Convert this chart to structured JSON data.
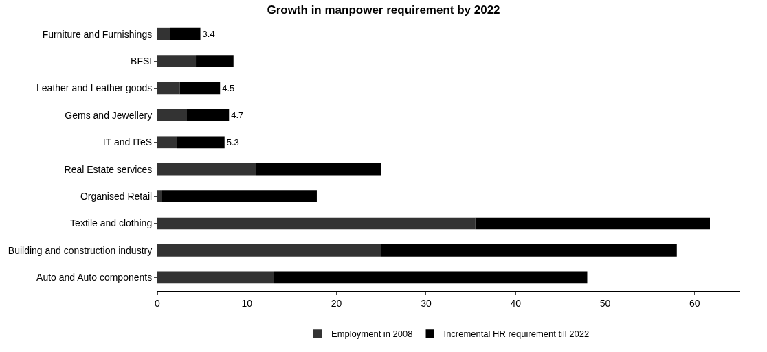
{
  "chart_data": {
    "type": "bar",
    "orientation": "horizontal",
    "stacked": true,
    "title": "Growth in manpower requirement by 2022",
    "categories": [
      "Furniture and Furnishings",
      "BFSI",
      "Leather and Leather goods",
      "Gems and Jewellery",
      "IT and ITeS",
      "Real Estate services",
      "Organised Retail",
      "Textile and clothing",
      "Building and construction industry",
      "Auto and Auto components"
    ],
    "series": [
      {
        "name": "Employment in 2008",
        "color": "#333333",
        "values": [
          1.4,
          4.3,
          2.5,
          3.3,
          2.2,
          11,
          0.5,
          35.5,
          25,
          13
        ]
      },
      {
        "name": "Incremental HR requirement till 2022",
        "color": "#000000",
        "values": [
          3.4,
          4.2,
          4.5,
          4.7,
          5.3,
          14,
          17.3,
          26.2,
          33,
          35
        ],
        "value_labels": [
          "3.4",
          null,
          "4.5",
          "4.7",
          "5.3",
          null,
          null,
          null,
          null,
          null
        ]
      }
    ],
    "xlim": [
      0,
      65
    ],
    "xticks": [
      0,
      10,
      20,
      30,
      40,
      50,
      60
    ],
    "grid": false,
    "legend": "bottom"
  }
}
